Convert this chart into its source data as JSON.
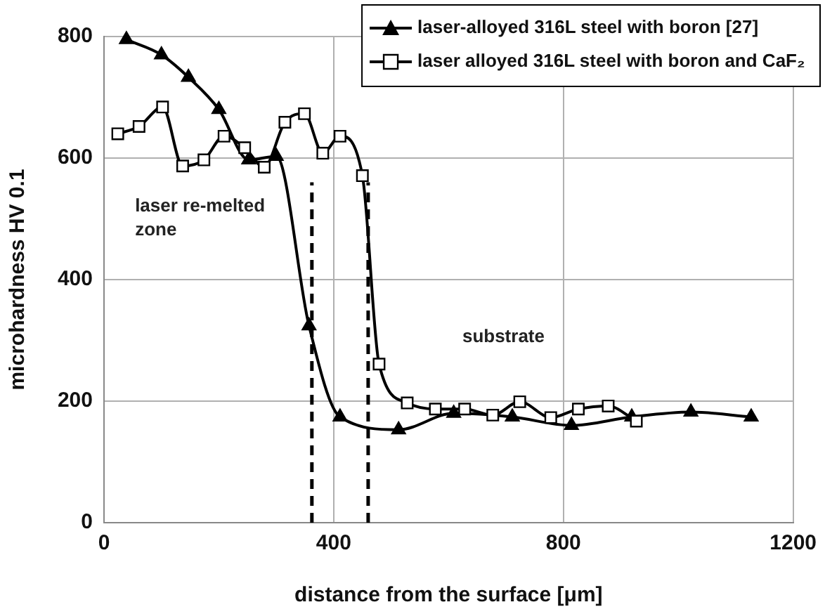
{
  "chart_data": {
    "type": "line",
    "xlabel": "distance from the surface [μm]",
    "ylabel": "microhardness HV 0.1",
    "xlim": [
      0,
      1200
    ],
    "xticks": [
      0,
      400,
      800,
      1200
    ],
    "ylim": [
      0,
      800
    ],
    "yticks": [
      0,
      200,
      400,
      600,
      800
    ],
    "grid": true,
    "legend": "top right",
    "series": [
      {
        "name": "laser-alloyed 316L steel with boron [27]",
        "color": "#000000",
        "marker": "triangle",
        "x": [
          39,
          100,
          147,
          200,
          252,
          300,
          357,
          411,
          513,
          609,
          711,
          814,
          919,
          1022,
          1127
        ],
        "values": [
          795,
          770,
          733,
          680,
          597,
          603,
          324,
          174,
          153,
          180,
          174,
          160,
          174,
          182,
          174
        ]
      },
      {
        "name": "laser alloyed 316L steel with boron and CaF₂",
        "color": "#000000",
        "marker": "square",
        "x": [
          24,
          61,
          102,
          137,
          174,
          209,
          245,
          279,
          315,
          349,
          381,
          411,
          450,
          479,
          528,
          577,
          628,
          677,
          724,
          778,
          826,
          878,
          927
        ],
        "values": [
          640,
          652,
          684,
          587,
          597,
          636,
          617,
          585,
          659,
          673,
          608,
          636,
          571,
          261,
          197,
          187,
          187,
          177,
          199,
          173,
          187,
          192,
          167
        ]
      }
    ],
    "ref_lines": [
      {
        "axis": "x",
        "value": 362,
        "color": "#000000",
        "line_style": "dashed"
      },
      {
        "axis": "x",
        "value": 460,
        "color": "#000000",
        "line_style": "dashed"
      }
    ],
    "annotations": [
      "laser re-melted zone",
      "substrate"
    ]
  }
}
